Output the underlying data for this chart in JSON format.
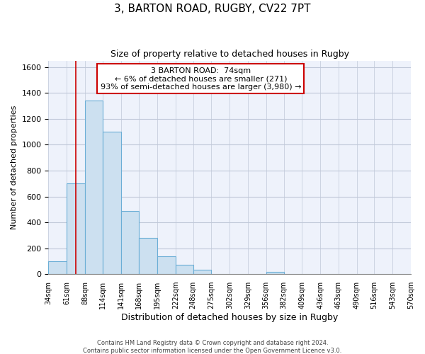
{
  "title": "3, BARTON ROAD, RUGBY, CV22 7PT",
  "subtitle": "Size of property relative to detached houses in Rugby",
  "xlabel": "Distribution of detached houses by size in Rugby",
  "ylabel": "Number of detached properties",
  "footer_line1": "Contains HM Land Registry data © Crown copyright and database right 2024.",
  "footer_line2": "Contains public sector information licensed under the Open Government Licence v3.0.",
  "annotation_line1": "3 BARTON ROAD:  74sqm",
  "annotation_line2": "← 6% of detached houses are smaller (271)",
  "annotation_line3": "93% of semi-detached houses are larger (3,980) →",
  "bin_edges": [
    34,
    61,
    88,
    114,
    141,
    168,
    195,
    222,
    248,
    275,
    302,
    329,
    356,
    382,
    409,
    436,
    463,
    490,
    516,
    543,
    570
  ],
  "bar_heights": [
    100,
    700,
    1340,
    1100,
    490,
    280,
    140,
    75,
    35,
    0,
    0,
    0,
    15,
    0,
    0,
    0,
    0,
    0,
    0,
    0
  ],
  "bar_color": "#cce0f0",
  "bar_edge_color": "#6baed6",
  "property_line_x": 74,
  "property_line_color": "#cc0000",
  "annotation_box_edge_color": "#cc0000",
  "ylim": [
    0,
    1650
  ],
  "background_color": "#ffffff",
  "plot_background_color": "#eef2fb",
  "grid_color": "#c0c8d8",
  "title_fontsize": 11,
  "subtitle_fontsize": 9,
  "ylabel_fontsize": 8,
  "xlabel_fontsize": 9,
  "tick_fontsize": 7,
  "footer_fontsize": 6,
  "annot_fontsize": 8
}
